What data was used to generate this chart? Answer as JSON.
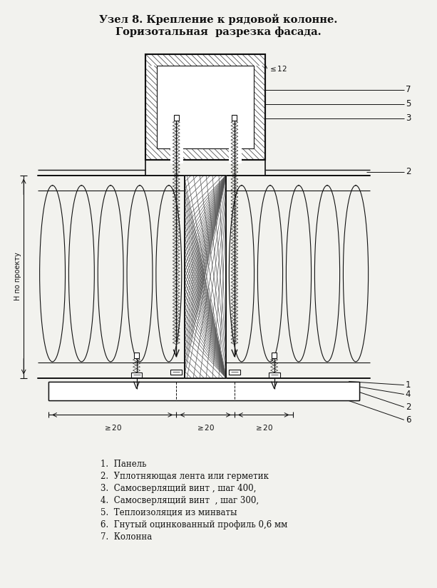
{
  "title_line1": "Узел 8. Крепление к рядовой колонне.",
  "title_line2": "Горизотальная  разрезка фасада.",
  "legend": [
    "1.  Панель",
    "2.  Уплотняющая лента или герметик",
    "3.  Самосверлящий винт , шаг 400,",
    "4.  Самосверлящий винт  , шаг 300,",
    "5.  Теплоизоляция из минваты",
    "6.  Гнутый оцинкованный профиль 0,6 мм",
    "7.  Колонна"
  ],
  "bg_color": "#f2f2ee",
  "line_color": "#111111"
}
